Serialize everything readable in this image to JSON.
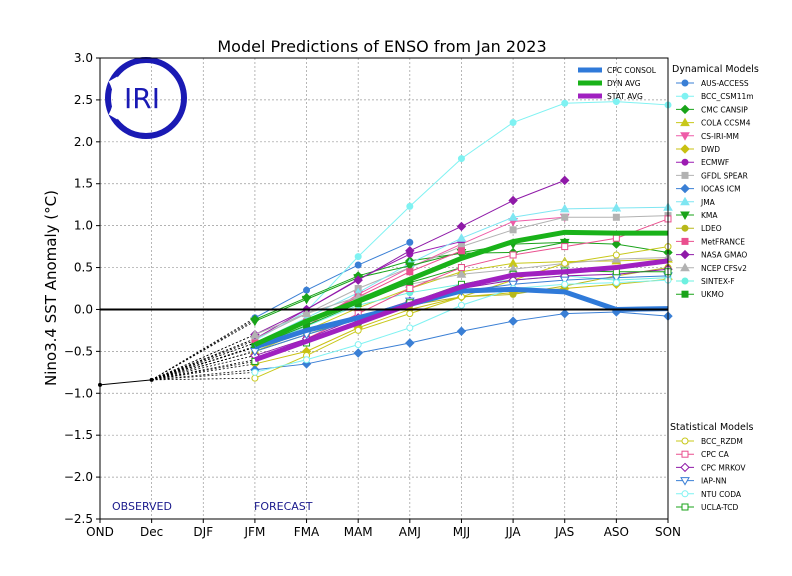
{
  "chart_data": {
    "type": "line",
    "title": "Model Predictions of ENSO from Jan 2023",
    "xlabel": "",
    "ylabel": "Nino3.4 SST Anomaly (°C)",
    "ylim": [
      -2.5,
      3.0
    ],
    "yticks": [
      -2.5,
      -2.0,
      -1.5,
      -1.0,
      -0.5,
      0.0,
      0.5,
      1.0,
      1.5,
      2.0,
      2.5,
      3.0
    ],
    "categories": [
      "OND",
      "Dec",
      "DJF",
      "JFM",
      "FMA",
      "MAM",
      "AMJ",
      "MJJ",
      "JJA",
      "JAS",
      "ASO",
      "SON"
    ],
    "grid": true,
    "observed_label": "OBSERVED",
    "forecast_label": "FORECAST",
    "logo_text": "IRI",
    "observed": [
      {
        "x": "OND",
        "y": -0.9
      },
      {
        "x": "Dec",
        "y": -0.84
      }
    ],
    "dynamical_title": "Dynamical Models",
    "statistical_title": "Statistical Models",
    "consensus": [
      {
        "name": "CPC CONSOL",
        "color": "#2f7ad9",
        "x": [
          "JFM",
          "FMA",
          "MAM",
          "AMJ",
          "MJJ",
          "JJA",
          "JAS",
          "ASO",
          "SON"
        ],
        "values": [
          -0.45,
          -0.25,
          -0.1,
          0.06,
          0.22,
          0.24,
          0.21,
          0.0,
          0.01
        ]
      },
      {
        "name": "DYN AVG",
        "color": "#19b219",
        "x": [
          "JFM",
          "FMA",
          "MAM",
          "AMJ",
          "MJJ",
          "JJA",
          "JAS",
          "ASO",
          "SON"
        ],
        "values": [
          -0.42,
          -0.14,
          0.1,
          0.36,
          0.61,
          0.81,
          0.92,
          0.91,
          0.91
        ]
      },
      {
        "name": "STAT AVG",
        "color": "#a020c0",
        "x": [
          "JFM",
          "FMA",
          "MAM",
          "AMJ",
          "MJJ",
          "JJA",
          "JAS",
          "ASO",
          "SON"
        ],
        "values": [
          -0.6,
          -0.38,
          -0.16,
          0.06,
          0.27,
          0.41,
          0.45,
          0.5,
          0.58
        ]
      }
    ],
    "series": [
      {
        "name": "AUS-ACCESS",
        "group": "dynamical",
        "color": "#3a7fd5",
        "marker": "circle",
        "fill": true,
        "x": [
          "JFM",
          "FMA",
          "MAM",
          "AMJ"
        ],
        "values": [
          -0.1,
          0.23,
          0.53,
          0.8
        ]
      },
      {
        "name": "BCC_CSM11m",
        "group": "dynamical",
        "color": "#7ff2f2",
        "marker": "circle",
        "fill": true,
        "x": [
          "JFM",
          "FMA",
          "MAM",
          "AMJ",
          "MJJ",
          "JJA",
          "JAS",
          "ASO",
          "SON"
        ],
        "values": [
          -0.37,
          -0.02,
          0.63,
          1.23,
          1.8,
          2.23,
          2.46,
          2.48,
          2.44
        ]
      },
      {
        "name": "CMC CANSIP",
        "group": "dynamical",
        "color": "#19a319",
        "marker": "diamond",
        "fill": true,
        "x": [
          "JFM",
          "FMA",
          "MAM",
          "AMJ",
          "MJJ",
          "JJA",
          "JAS",
          "ASO",
          "SON"
        ],
        "values": [
          -0.12,
          0.14,
          0.4,
          0.58,
          0.67,
          0.68,
          0.8,
          0.78,
          0.68
        ]
      },
      {
        "name": "COLA CCSM4",
        "group": "dynamical",
        "color": "#c8c81a",
        "marker": "triangle-up",
        "fill": true,
        "x": [
          "JFM",
          "FMA",
          "MAM",
          "AMJ",
          "MJJ",
          "JJA",
          "JAS",
          "ASO",
          "SON"
        ],
        "values": [
          -0.5,
          -0.25,
          0.02,
          0.25,
          0.45,
          0.55,
          0.57,
          0.58,
          0.6
        ]
      },
      {
        "name": "CS-IRI-MM",
        "group": "dynamical",
        "color": "#ee5ca8",
        "marker": "triangle-down",
        "fill": true,
        "x": [
          "JFM",
          "FMA",
          "MAM",
          "AMJ",
          "MJJ",
          "JJA",
          "JAS"
        ],
        "values": [
          -0.45,
          -0.2,
          0.18,
          0.5,
          0.78,
          1.05,
          1.1
        ]
      },
      {
        "name": "DWD",
        "group": "dynamical",
        "color": "#c9c012",
        "marker": "diamond",
        "fill": true,
        "x": [
          "JFM",
          "FMA",
          "MAM",
          "AMJ",
          "MJJ",
          "JJA",
          "JAS",
          "ASO",
          "SON"
        ],
        "values": [
          -0.65,
          -0.5,
          -0.22,
          0.0,
          0.15,
          0.2,
          0.25,
          0.3,
          0.36
        ]
      },
      {
        "name": "ECMWF",
        "group": "dynamical",
        "color": "#9c1bb2",
        "marker": "circle",
        "fill": true,
        "x": [
          "JFM",
          "FMA",
          "MAM",
          "AMJ",
          "MJJ"
        ],
        "values": [
          -0.35,
          0.0,
          0.36,
          0.66,
          0.81
        ]
      },
      {
        "name": "GFDL SPEAR",
        "group": "dynamical",
        "color": "#b2b2b2",
        "marker": "square",
        "fill": true,
        "x": [
          "JFM",
          "FMA",
          "MAM",
          "AMJ",
          "MJJ",
          "JJA",
          "JAS",
          "ASO",
          "SON"
        ],
        "values": [
          -0.35,
          -0.05,
          0.25,
          0.5,
          0.75,
          0.95,
          1.1,
          1.1,
          1.12
        ]
      },
      {
        "name": "IOCAS ICM",
        "group": "dynamical",
        "color": "#3a7fd5",
        "marker": "diamond",
        "fill": true,
        "x": [
          "JFM",
          "FMA",
          "MAM",
          "AMJ",
          "MJJ",
          "JJA",
          "JAS",
          "ASO",
          "SON"
        ],
        "values": [
          -0.72,
          -0.65,
          -0.52,
          -0.4,
          -0.26,
          -0.14,
          -0.05,
          -0.03,
          -0.08
        ]
      },
      {
        "name": "JMA",
        "group": "dynamical",
        "color": "#7fe6f2",
        "marker": "triangle-up",
        "fill": true,
        "x": [
          "JFM",
          "FMA",
          "MAM",
          "AMJ",
          "MJJ",
          "JJA",
          "JAS",
          "ASO",
          "SON"
        ],
        "values": [
          -0.4,
          -0.1,
          0.2,
          0.55,
          0.85,
          1.1,
          1.2,
          1.21,
          1.22
        ]
      },
      {
        "name": "KMA",
        "group": "dynamical",
        "color": "#19a319",
        "marker": "triangle-down",
        "fill": true,
        "x": [
          "JFM",
          "FMA",
          "MAM",
          "AMJ",
          "MJJ",
          "JJA",
          "JAS"
        ],
        "values": [
          -0.14,
          0.12,
          0.38,
          0.52,
          0.68,
          0.78,
          0.8
        ]
      },
      {
        "name": "LDEO",
        "group": "dynamical",
        "color": "#b8b81a",
        "marker": "circle",
        "fill": true,
        "x": [
          "JFM",
          "FMA",
          "MAM",
          "AMJ",
          "MJJ",
          "JJA",
          "JAS",
          "ASO",
          "SON"
        ],
        "values": [
          -0.5,
          -0.3,
          -0.1,
          0.05,
          0.15,
          0.18,
          0.28,
          0.4,
          0.5
        ]
      },
      {
        "name": "MetFRANCE",
        "group": "dynamical",
        "color": "#ea4f8e",
        "marker": "square",
        "fill": true,
        "x": [
          "JFM",
          "FMA",
          "MAM",
          "AMJ",
          "MJJ"
        ],
        "values": [
          -0.4,
          -0.15,
          0.15,
          0.45,
          0.7
        ]
      },
      {
        "name": "NASA GMAO",
        "group": "dynamical",
        "color": "#8f1aa8",
        "marker": "diamond",
        "fill": true,
        "x": [
          "JFM",
          "FMA",
          "MAM",
          "AMJ",
          "MJJ",
          "JJA",
          "JAS"
        ],
        "values": [
          -0.3,
          0.0,
          0.35,
          0.7,
          0.99,
          1.3,
          1.54
        ]
      },
      {
        "name": "NCEP CFSv2",
        "group": "dynamical",
        "color": "#b2b2b2",
        "marker": "triangle-up",
        "fill": true,
        "x": [
          "JFM",
          "FMA",
          "MAM",
          "AMJ",
          "MJJ",
          "JJA",
          "JAS",
          "ASO",
          "SON"
        ],
        "values": [
          -0.3,
          -0.05,
          0.15,
          0.3,
          0.42,
          0.48,
          0.55,
          0.6,
          0.62
        ]
      },
      {
        "name": "SINTEX-F",
        "group": "dynamical",
        "color": "#6df0e0",
        "marker": "circle",
        "fill": true,
        "x": [
          "JFM",
          "FMA",
          "MAM",
          "AMJ",
          "MJJ",
          "JJA",
          "JAS",
          "ASO",
          "SON"
        ],
        "values": [
          -0.45,
          -0.2,
          0.05,
          0.2,
          0.3,
          0.35,
          0.4,
          0.35,
          0.38
        ]
      },
      {
        "name": "UKMO",
        "group": "dynamical",
        "color": "#19a319",
        "marker": "square",
        "fill": true,
        "x": [
          "JFM",
          "FMA",
          "MAM",
          "AMJ",
          "MJJ"
        ],
        "values": [
          -0.44,
          -0.19,
          0.07,
          0.32,
          0.5
        ]
      },
      {
        "name": "BCC_RZDM",
        "group": "statistical",
        "color": "#c8c81a",
        "marker": "circle",
        "fill": false,
        "x": [
          "JFM",
          "FMA",
          "MAM",
          "AMJ",
          "MJJ",
          "JJA",
          "JAS",
          "ASO",
          "SON"
        ],
        "values": [
          -0.82,
          -0.55,
          -0.25,
          -0.05,
          0.15,
          0.35,
          0.55,
          0.65,
          0.75
        ]
      },
      {
        "name": "CPC CA",
        "group": "statistical",
        "color": "#ea4f8e",
        "marker": "square",
        "fill": false,
        "x": [
          "JFM",
          "FMA",
          "MAM",
          "AMJ",
          "MJJ",
          "JJA",
          "JAS",
          "ASO",
          "SON"
        ],
        "values": [
          -0.6,
          -0.35,
          -0.05,
          0.25,
          0.5,
          0.65,
          0.75,
          0.85,
          1.08
        ]
      },
      {
        "name": "CPC MRKOV",
        "group": "statistical",
        "color": "#8f1aa8",
        "marker": "diamond",
        "fill": false,
        "x": [
          "JFM",
          "FMA",
          "MAM",
          "AMJ",
          "MJJ",
          "JJA",
          "JAS",
          "ASO",
          "SON"
        ],
        "values": [
          -0.55,
          -0.35,
          -0.1,
          0.1,
          0.25,
          0.35,
          0.4,
          0.42,
          0.48
        ]
      },
      {
        "name": "IAP-NN",
        "group": "statistical",
        "color": "#3a7fd5",
        "marker": "triangle-down",
        "fill": false,
        "x": [
          "JFM",
          "FMA",
          "MAM",
          "AMJ",
          "MJJ",
          "JJA",
          "JAS",
          "ASO",
          "SON"
        ],
        "values": [
          -0.5,
          -0.3,
          -0.12,
          0.1,
          0.22,
          0.3,
          0.35,
          0.38,
          0.4
        ]
      },
      {
        "name": "NTU CODA",
        "group": "statistical",
        "color": "#7ff2f2",
        "marker": "circle",
        "fill": false,
        "x": [
          "JFM",
          "FMA",
          "MAM",
          "AMJ",
          "MJJ",
          "JJA",
          "JAS",
          "ASO",
          "SON"
        ],
        "values": [
          -0.75,
          -0.6,
          -0.42,
          -0.22,
          0.05,
          0.25,
          0.3,
          0.32,
          0.35
        ]
      },
      {
        "name": "UCLA-TCD",
        "group": "statistical",
        "color": "#19a319",
        "marker": "square",
        "fill": false,
        "x": [
          "JFM",
          "FMA",
          "MAM",
          "AMJ",
          "MJJ",
          "JJA",
          "JAS",
          "ASO",
          "SON"
        ],
        "values": [
          -0.62,
          -0.4,
          -0.15,
          0.08,
          0.3,
          0.42,
          0.46,
          0.45,
          0.45
        ]
      }
    ]
  }
}
